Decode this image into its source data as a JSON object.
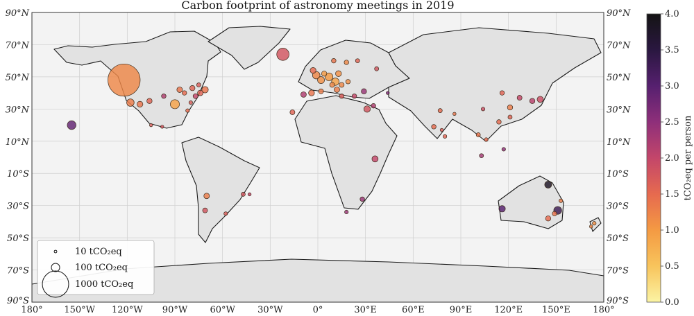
{
  "chart_data": {
    "type": "scatter",
    "title": "Carbon footprint of astronomy meetings in 2019",
    "projection": "equirectangular world map",
    "xlim": [
      -180,
      180
    ],
    "ylim": [
      -90,
      90
    ],
    "grid": true,
    "x_ticks": [
      "180°",
      "150°W",
      "120°W",
      "90°W",
      "60°W",
      "30°W",
      "0°",
      "30°E",
      "60°E",
      "90°E",
      "120°E",
      "150°E",
      "180°"
    ],
    "y_ticks": [
      "90°N",
      "70°N",
      "50°N",
      "30°N",
      "10°N",
      "10°S",
      "30°S",
      "50°S",
      "70°S",
      "90°S"
    ],
    "colorbar": {
      "label": "tCO₂eq per person",
      "range": [
        0,
        4
      ],
      "ticks": [
        "0.0",
        "0.5",
        "1.0",
        "1.5",
        "2.0",
        "2.5",
        "3.0",
        "3.5",
        "4.0"
      ],
      "colormap": [
        "#fbf4a4",
        "#f8c45c",
        "#f49a43",
        "#e66a4f",
        "#c3466a",
        "#8e2f7a",
        "#56206f",
        "#2a1740",
        "#141414"
      ]
    },
    "size_legend": {
      "placement": "lower-left",
      "entries": [
        {
          "label": "10 tCO₂eq",
          "total": 10
        },
        {
          "label": "100 tCO₂eq",
          "total": 100
        },
        {
          "label": "1000 tCO₂eq",
          "total": 1000
        }
      ]
    },
    "points": [
      {
        "lon": -122,
        "lat": 48,
        "total": 1500,
        "per_person": 1.2
      },
      {
        "lon": -118,
        "lat": 34,
        "total": 80,
        "per_person": 1.3
      },
      {
        "lon": -112,
        "lat": 33,
        "total": 50,
        "per_person": 1.4
      },
      {
        "lon": -106,
        "lat": 35,
        "total": 40,
        "per_person": 1.6
      },
      {
        "lon": -97,
        "lat": 38,
        "total": 30,
        "per_person": 2.2
      },
      {
        "lon": -87,
        "lat": 42,
        "total": 45,
        "per_person": 1.4
      },
      {
        "lon": -84,
        "lat": 40,
        "total": 30,
        "per_person": 1.5
      },
      {
        "lon": -90,
        "lat": 33,
        "total": 120,
        "per_person": 0.9
      },
      {
        "lon": -79,
        "lat": 43,
        "total": 40,
        "per_person": 1.6
      },
      {
        "lon": -75,
        "lat": 45,
        "total": 25,
        "per_person": 1.7
      },
      {
        "lon": -71,
        "lat": 42,
        "total": 60,
        "per_person": 1.4
      },
      {
        "lon": -74,
        "lat": 40,
        "total": 45,
        "per_person": 1.6
      },
      {
        "lon": -77,
        "lat": 38,
        "total": 35,
        "per_person": 2.0
      },
      {
        "lon": -80,
        "lat": 34,
        "total": 20,
        "per_person": 1.7
      },
      {
        "lon": -82,
        "lat": 29,
        "total": 20,
        "per_person": 1.5
      },
      {
        "lon": -98,
        "lat": 19,
        "total": 15,
        "per_person": 1.8
      },
      {
        "lon": -155,
        "lat": 20,
        "total": 110,
        "per_person": 2.9
      },
      {
        "lon": -105,
        "lat": 20,
        "total": 15,
        "per_person": 1.7
      },
      {
        "lon": -70,
        "lat": -24,
        "total": 45,
        "per_person": 1.3
      },
      {
        "lon": -71,
        "lat": -33,
        "total": 35,
        "per_person": 1.8
      },
      {
        "lon": -58,
        "lat": -35,
        "total": 20,
        "per_person": 1.7
      },
      {
        "lon": -47,
        "lat": -23,
        "total": 25,
        "per_person": 1.8
      },
      {
        "lon": -43,
        "lat": -23,
        "total": 15,
        "per_person": 2.0
      },
      {
        "lon": -22,
        "lat": 64,
        "total": 220,
        "per_person": 1.8
      },
      {
        "lon": -3,
        "lat": 54,
        "total": 50,
        "per_person": 1.5
      },
      {
        "lon": -1,
        "lat": 51,
        "total": 80,
        "per_person": 1.2
      },
      {
        "lon": 2,
        "lat": 48,
        "total": 70,
        "per_person": 1.1
      },
      {
        "lon": 7,
        "lat": 50,
        "total": 90,
        "per_person": 1.0
      },
      {
        "lon": 11,
        "lat": 47,
        "total": 80,
        "per_person": 0.9
      },
      {
        "lon": 4,
        "lat": 52,
        "total": 40,
        "per_person": 1.0
      },
      {
        "lon": 13,
        "lat": 52,
        "total": 50,
        "per_person": 1.1
      },
      {
        "lon": 15,
        "lat": 45,
        "total": 35,
        "per_person": 1.2
      },
      {
        "lon": 19,
        "lat": 47,
        "total": 30,
        "per_person": 1.1
      },
      {
        "lon": 12,
        "lat": 42,
        "total": 45,
        "per_person": 1.3
      },
      {
        "lon": 15,
        "lat": 38,
        "total": 30,
        "per_person": 1.7
      },
      {
        "lon": 9,
        "lat": 45,
        "total": 35,
        "per_person": 1.2
      },
      {
        "lon": -9,
        "lat": 39,
        "total": 45,
        "per_person": 2.2
      },
      {
        "lon": -4,
        "lat": 40,
        "total": 50,
        "per_person": 1.4
      },
      {
        "lon": 2,
        "lat": 41,
        "total": 35,
        "per_person": 1.3
      },
      {
        "lon": 18,
        "lat": 59,
        "total": 30,
        "per_person": 1.2
      },
      {
        "lon": 10,
        "lat": 60,
        "total": 30,
        "per_person": 1.4
      },
      {
        "lon": 25,
        "lat": 60,
        "total": 25,
        "per_person": 1.6
      },
      {
        "lon": 23,
        "lat": 38,
        "total": 30,
        "per_person": 2.0
      },
      {
        "lon": 29,
        "lat": 41,
        "total": 40,
        "per_person": 2.4
      },
      {
        "lon": 37,
        "lat": 55,
        "total": 25,
        "per_person": 1.8
      },
      {
        "lon": 44,
        "lat": 40,
        "total": 15,
        "per_person": 2.7
      },
      {
        "lon": -16,
        "lat": 28,
        "total": 35,
        "per_person": 1.6
      },
      {
        "lon": 35,
        "lat": 32,
        "total": 30,
        "per_person": 2.2
      },
      {
        "lon": 31,
        "lat": 30,
        "total": 60,
        "per_person": 1.8
      },
      {
        "lon": 36,
        "lat": -1,
        "total": 55,
        "per_person": 2.0
      },
      {
        "lon": 28,
        "lat": -26,
        "total": 30,
        "per_person": 2.4
      },
      {
        "lon": 18,
        "lat": -34,
        "total": 20,
        "per_person": 2.4
      },
      {
        "lon": 77,
        "lat": 29,
        "total": 25,
        "per_person": 1.5
      },
      {
        "lon": 73,
        "lat": 19,
        "total": 30,
        "per_person": 1.5
      },
      {
        "lon": 80,
        "lat": 13,
        "total": 20,
        "per_person": 1.6
      },
      {
        "lon": 78,
        "lat": 17,
        "total": 15,
        "per_person": 1.7
      },
      {
        "lon": 86,
        "lat": 27,
        "total": 15,
        "per_person": 1.4
      },
      {
        "lon": 104,
        "lat": 30,
        "total": 20,
        "per_person": 1.9
      },
      {
        "lon": 116,
        "lat": 40,
        "total": 30,
        "per_person": 1.6
      },
      {
        "lon": 121,
        "lat": 31,
        "total": 40,
        "per_person": 1.3
      },
      {
        "lon": 114,
        "lat": 22,
        "total": 30,
        "per_person": 1.5
      },
      {
        "lon": 127,
        "lat": 37,
        "total": 35,
        "per_person": 2.0
      },
      {
        "lon": 121,
        "lat": 25,
        "total": 25,
        "per_person": 1.6
      },
      {
        "lon": 140,
        "lat": 36,
        "total": 55,
        "per_person": 1.9
      },
      {
        "lon": 135,
        "lat": 35,
        "total": 40,
        "per_person": 2.1
      },
      {
        "lon": 101,
        "lat": 14,
        "total": 25,
        "per_person": 1.4
      },
      {
        "lon": 106,
        "lat": 11,
        "total": 20,
        "per_person": 1.5
      },
      {
        "lon": 117,
        "lat": 5,
        "total": 20,
        "per_person": 2.5
      },
      {
        "lon": 103,
        "lat": 1,
        "total": 25,
        "per_person": 2.3
      },
      {
        "lon": 145,
        "lat": -17,
        "total": 70,
        "per_person": 3.8
      },
      {
        "lon": 116,
        "lat": -32,
        "total": 60,
        "per_person": 3.0
      },
      {
        "lon": 151,
        "lat": -33,
        "total": 90,
        "per_person": 3.3
      },
      {
        "lon": 153,
        "lat": -27,
        "total": 20,
        "per_person": 1.3
      },
      {
        "lon": 145,
        "lat": -38,
        "total": 40,
        "per_person": 1.5
      },
      {
        "lon": 149,
        "lat": -35,
        "total": 30,
        "per_person": 1.4
      },
      {
        "lon": 174,
        "lat": -41,
        "total": 20,
        "per_person": 1.1
      },
      {
        "lon": 172,
        "lat": -43,
        "total": 15,
        "per_person": 1.2
      }
    ]
  }
}
